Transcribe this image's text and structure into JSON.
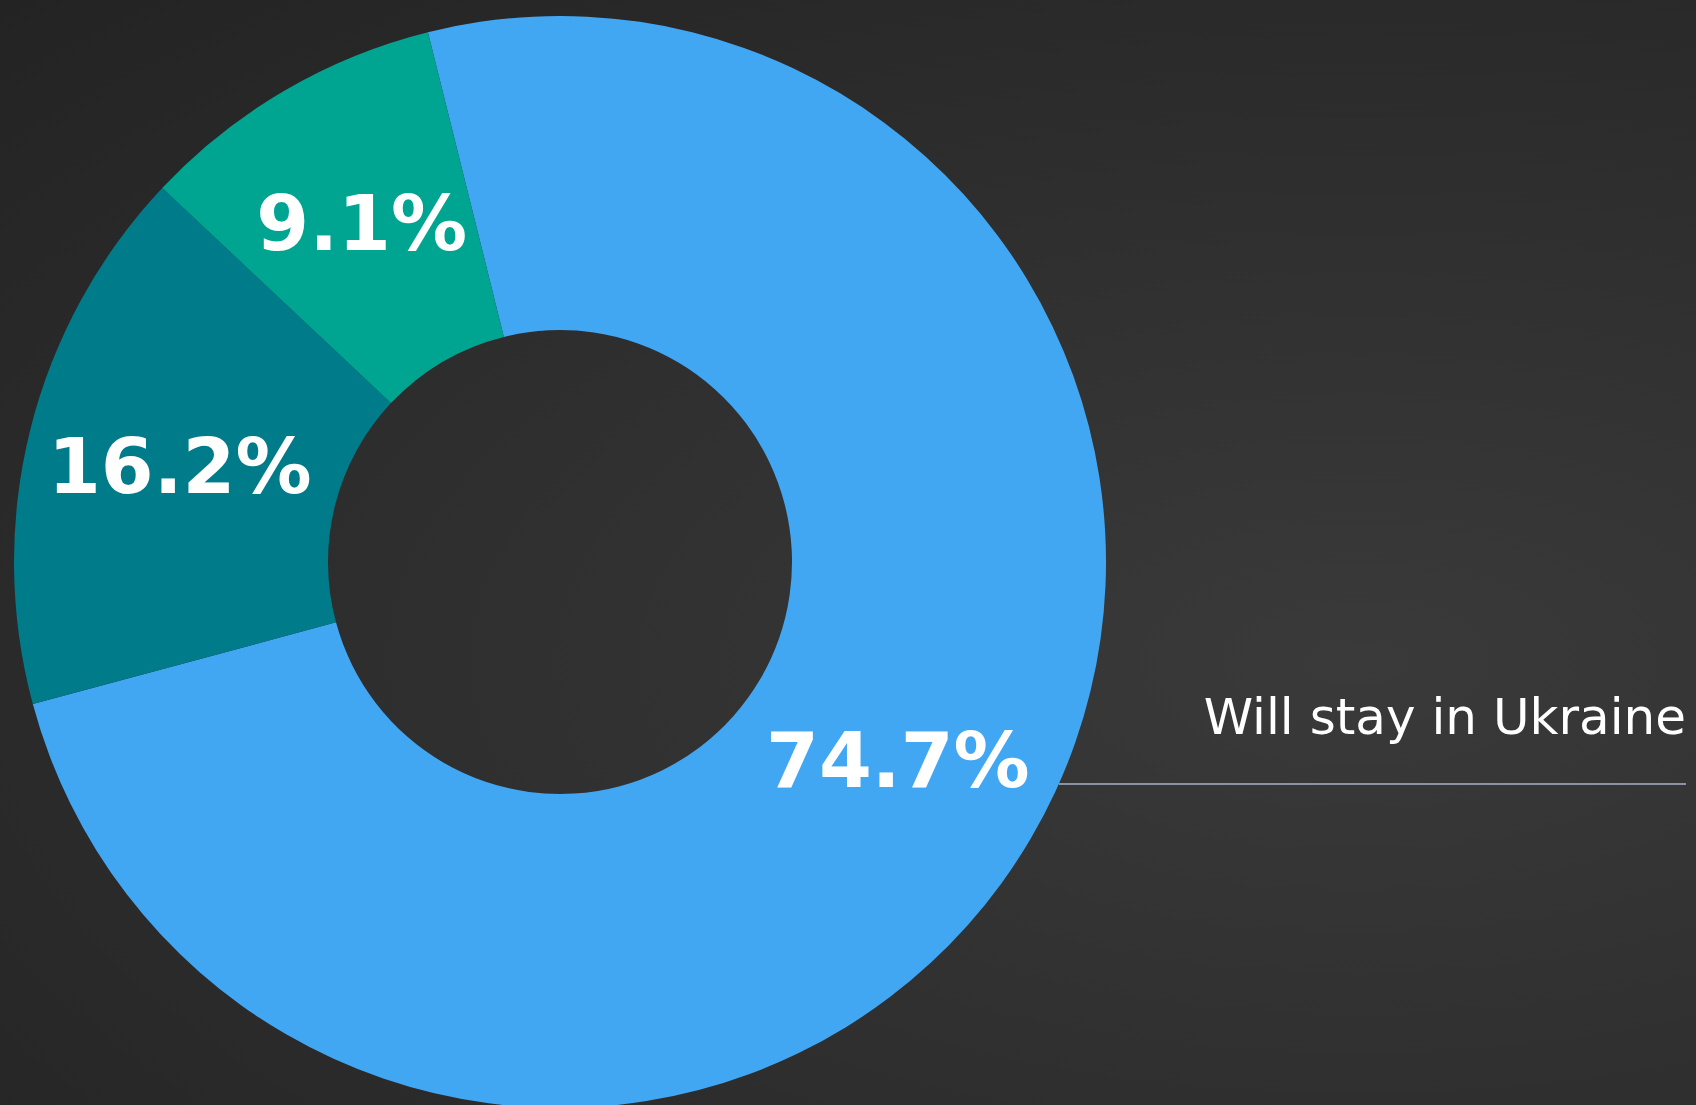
{
  "chart_data": {
    "type": "donut",
    "categories": [
      "Will stay in Ukraine",
      null,
      null
    ],
    "values": [
      74.7,
      16.2,
      9.1
    ],
    "colors": [
      "#42a7f3",
      "#007b8a",
      "#00a592"
    ],
    "value_labels": [
      "74.7%",
      "16.2%",
      "9.1%"
    ]
  }
}
